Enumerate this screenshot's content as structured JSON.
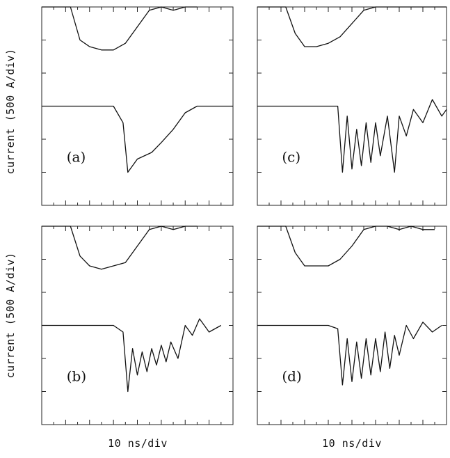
{
  "figure": {
    "ylabel": "current (500 A/div)",
    "xlabel": "10 ns/div"
  },
  "chart_data": [
    {
      "type": "line",
      "panel_label": "(a)",
      "xlabel": "10 ns/div",
      "ylabel": "current (500 A/div)",
      "xlim": [
        0,
        8
      ],
      "ylim": [
        0,
        6
      ],
      "grid": false,
      "series": [
        {
          "x": [
            0,
            1.2,
            1.6,
            2.0,
            2.5,
            3.0,
            3.5,
            4.0,
            4.5,
            5.0,
            5.5,
            6.0,
            6.5
          ],
          "y": [
            6,
            6,
            5,
            4.8,
            4.7,
            4.7,
            4.9,
            5.4,
            5.9,
            6,
            5.9,
            6,
            6
          ]
        },
        {
          "x": [
            0,
            3.0,
            3.4,
            3.6,
            4.0,
            4.6,
            5.0,
            5.5,
            6.0,
            6.5,
            7.0,
            7.5,
            8.0
          ],
          "y": [
            3,
            3,
            2.5,
            1.0,
            1.4,
            1.6,
            1.9,
            2.3,
            2.8,
            3.0,
            3.0,
            3.0,
            3.0
          ]
        }
      ]
    },
    {
      "type": "line",
      "panel_label": "(c)",
      "xlabel": "10 ns/div",
      "ylabel": "current (500 A/div)",
      "xlim": [
        0,
        8
      ],
      "ylim": [
        0,
        6
      ],
      "grid": false,
      "series": [
        {
          "x": [
            0,
            1.2,
            1.6,
            2.0,
            2.5,
            3.0,
            3.5,
            4.0,
            4.5,
            5.0,
            5.5,
            6.0,
            6.5,
            7.0,
            7.5,
            8.0
          ],
          "y": [
            6,
            6,
            5.2,
            4.8,
            4.8,
            4.9,
            5.1,
            5.5,
            5.9,
            6,
            6,
            6,
            6,
            6,
            6,
            6
          ]
        },
        {
          "x": [
            0,
            3.0,
            3.4,
            3.6,
            3.8,
            4.0,
            4.2,
            4.4,
            4.6,
            4.8,
            5.0,
            5.2,
            5.5,
            5.8,
            6.0,
            6.3,
            6.6,
            7.0,
            7.4,
            7.8,
            8.0
          ],
          "y": [
            3,
            3,
            3,
            1.0,
            2.7,
            1.1,
            2.3,
            1.2,
            2.5,
            1.3,
            2.5,
            1.5,
            2.7,
            1.0,
            2.7,
            2.1,
            2.9,
            2.5,
            3.2,
            2.7,
            2.9
          ]
        }
      ]
    },
    {
      "type": "line",
      "panel_label": "(b)",
      "xlabel": "10 ns/div",
      "ylabel": "current (500 A/div)",
      "xlim": [
        0,
        8
      ],
      "ylim": [
        0,
        6
      ],
      "grid": false,
      "series": [
        {
          "x": [
            0,
            1.2,
            1.6,
            2.0,
            2.5,
            3.0,
            3.5,
            4.0,
            4.5,
            5.0,
            5.5,
            6.0,
            6.5
          ],
          "y": [
            6,
            6,
            5.1,
            4.8,
            4.7,
            4.8,
            4.9,
            5.4,
            5.9,
            6,
            5.9,
            6,
            6
          ]
        },
        {
          "x": [
            0,
            3.0,
            3.4,
            3.6,
            3.8,
            4.0,
            4.2,
            4.4,
            4.6,
            4.8,
            5.0,
            5.2,
            5.4,
            5.7,
            6.0,
            6.3,
            6.6,
            7.0,
            7.5
          ],
          "y": [
            3,
            3,
            2.8,
            1.0,
            2.3,
            1.5,
            2.2,
            1.6,
            2.3,
            1.8,
            2.4,
            1.9,
            2.5,
            2.0,
            3.0,
            2.7,
            3.2,
            2.8,
            3.0
          ]
        }
      ]
    },
    {
      "type": "line",
      "panel_label": "(d)",
      "xlabel": "10 ns/div",
      "ylabel": "current (500 A/div)",
      "xlim": [
        0,
        8
      ],
      "ylim": [
        0,
        6
      ],
      "grid": false,
      "series": [
        {
          "x": [
            0,
            1.2,
            1.6,
            2.0,
            2.5,
            3.0,
            3.5,
            4.0,
            4.5,
            5.0,
            5.5,
            6.0,
            6.5,
            7.0,
            7.5
          ],
          "y": [
            6,
            6,
            5.2,
            4.8,
            4.8,
            4.8,
            5.0,
            5.4,
            5.9,
            6,
            6,
            5.9,
            6,
            5.9,
            5.9
          ]
        },
        {
          "x": [
            0,
            3.0,
            3.4,
            3.6,
            3.8,
            4.0,
            4.2,
            4.4,
            4.6,
            4.8,
            5.0,
            5.2,
            5.4,
            5.6,
            5.8,
            6.0,
            6.3,
            6.6,
            7.0,
            7.4,
            7.8
          ],
          "y": [
            3,
            3,
            2.9,
            1.2,
            2.6,
            1.3,
            2.5,
            1.4,
            2.6,
            1.5,
            2.6,
            1.6,
            2.8,
            1.7,
            2.7,
            2.1,
            3.0,
            2.6,
            3.1,
            2.8,
            3.0
          ]
        }
      ]
    }
  ]
}
